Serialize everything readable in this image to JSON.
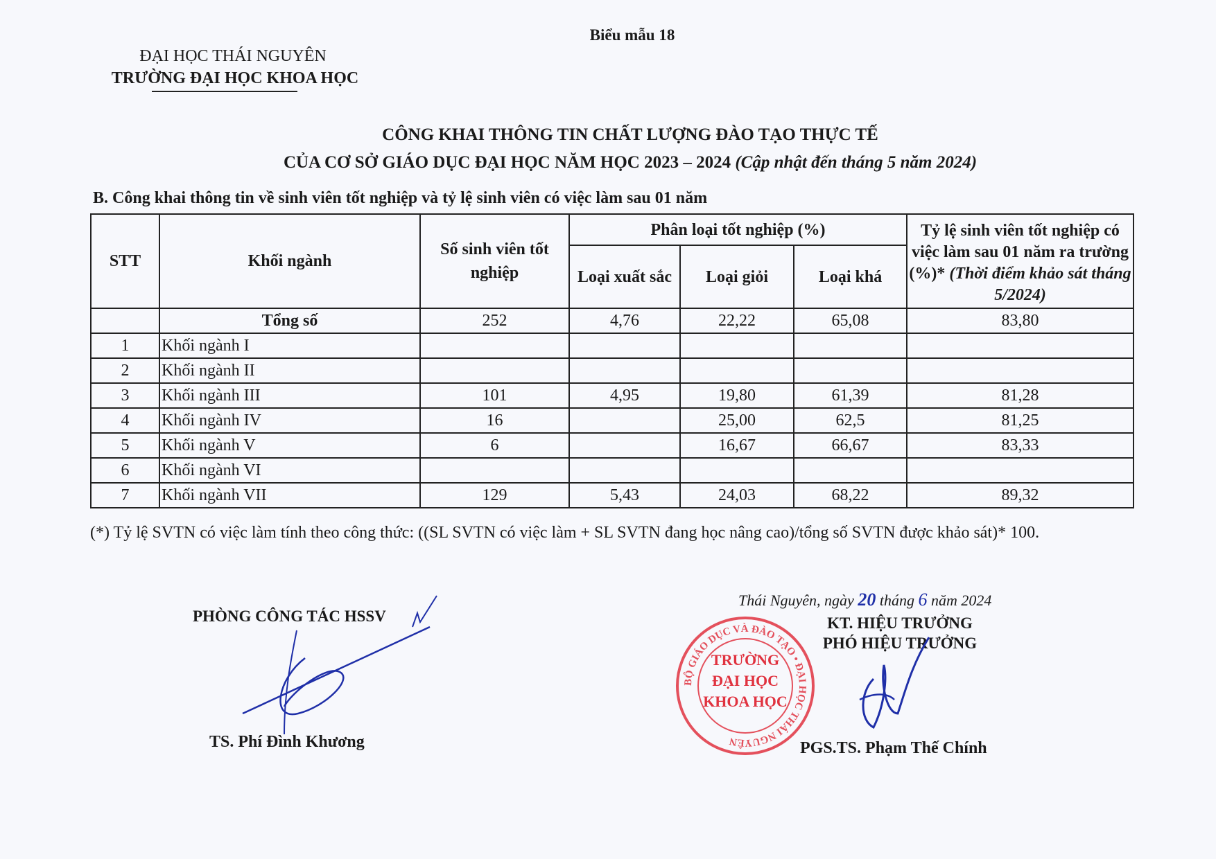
{
  "form_label": "Biểu mẫu 18",
  "org": {
    "parent": "ĐẠI HỌC THÁI NGUYÊN",
    "school": "TRƯỜNG ĐẠI HỌC KHOA HỌC"
  },
  "title": {
    "line1": "CÔNG KHAI THÔNG TIN CHẤT LƯỢNG ĐÀO TẠO THỰC TẾ",
    "line2": "CỦA CƠ SỞ GIÁO DỤC ĐẠI HỌC NĂM HỌC 2023 – 2024",
    "line2_note": "(Cập nhật đến tháng 5 năm 2024)"
  },
  "section": "B. Công khai thông tin về sinh viên tốt nghiệp và tỷ lệ sinh viên có việc làm sau 01 năm",
  "table": {
    "headers": {
      "stt": "STT",
      "group": "Khối ngành",
      "graduates": "Số sinh viên tốt nghiệp",
      "classification": "Phân loại tốt nghiệp (%)",
      "excellent": "Loại xuất sắc",
      "very_good": "Loại giỏi",
      "good": "Loại khá",
      "employment": "Tỷ lệ sinh viên tốt nghiệp có việc làm sau 01 năm ra trường (%)*",
      "employment_note": "(Thời điểm khảo sát tháng 5/2024)"
    },
    "total": {
      "label": "Tổng số",
      "graduates": "252",
      "excellent": "4,76",
      "very_good": "22,22",
      "good": "65,08",
      "employment": "83,80"
    },
    "rows": [
      {
        "stt": "1",
        "group": "Khối ngành I",
        "graduates": "",
        "excellent": "",
        "very_good": "",
        "good": "",
        "employment": ""
      },
      {
        "stt": "2",
        "group": "Khối ngành II",
        "graduates": "",
        "excellent": "",
        "very_good": "",
        "good": "",
        "employment": ""
      },
      {
        "stt": "3",
        "group": "Khối ngành III",
        "graduates": "101",
        "excellent": "4,95",
        "very_good": "19,80",
        "good": "61,39",
        "employment": "81,28"
      },
      {
        "stt": "4",
        "group": "Khối ngành IV",
        "graduates": "16",
        "excellent": "",
        "very_good": "25,00",
        "good": "62,5",
        "employment": "81,25"
      },
      {
        "stt": "5",
        "group": "Khối ngành V",
        "graduates": "6",
        "excellent": "",
        "very_good": "16,67",
        "good": "66,67",
        "employment": "83,33"
      },
      {
        "stt": "6",
        "group": "Khối ngành VI",
        "graduates": "",
        "excellent": "",
        "very_good": "",
        "good": "",
        "employment": ""
      },
      {
        "stt": "7",
        "group": "Khối ngành VII",
        "graduates": "129",
        "excellent": "5,43",
        "very_good": "24,03",
        "good": "68,22",
        "employment": "89,32"
      }
    ]
  },
  "footnote": "(*) Tỷ lệ SVTN có việc làm tính theo công thức: ((SL SVTN có việc làm + SL SVTN đang học nâng cao)/tổng số SVTN được khảo sát)* 100.",
  "signatures": {
    "date_prefix": "Thái Nguyên, ngày",
    "day": "20",
    "month_word": "tháng",
    "month": "6",
    "year_part": "năm 2024",
    "left_title": "PHÒNG CÔNG TÁC HSSV",
    "left_name": "TS. Phí Đình Khương",
    "right_title1": "KT. HIỆU TRƯỞNG",
    "right_title2": "PHÓ HIỆU TRƯỞNG",
    "right_name": "PGS.TS. Phạm Thế Chính"
  },
  "stamp": {
    "center_text": [
      "TRƯỜNG",
      "ĐẠI HỌC",
      "KHOA HỌC"
    ],
    "ring_text": "BỘ GIÁO DỤC VÀ ĐÀO TẠO • ĐẠI HỌC THÁI NGUYÊN"
  },
  "colors": {
    "stamp": "#e0323f",
    "ink": "#1f2fa8",
    "text": "#1a1a1a"
  }
}
